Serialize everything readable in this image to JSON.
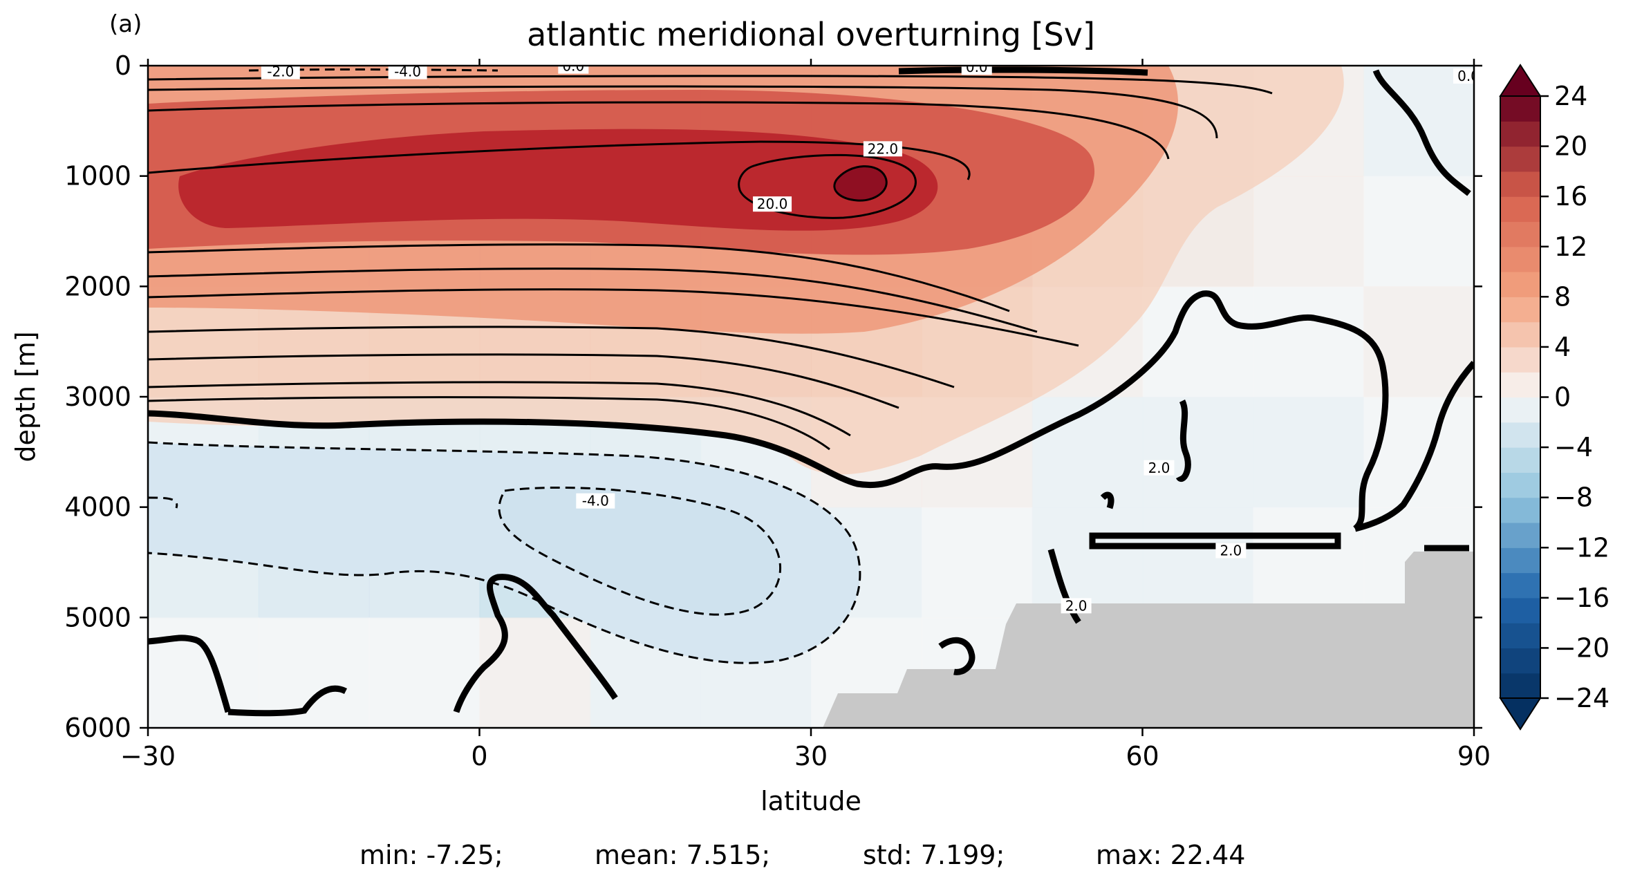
{
  "panel_label": "(a)",
  "stats_line": {
    "min": "min: -7.25;",
    "mean": "mean: 7.515;",
    "std": "std: 7.199;",
    "max": "max: 22.44"
  },
  "colors": {
    "land": "#c8c8c8",
    "background": "#ffffff",
    "contour_line": "#000000"
  },
  "chart_data": {
    "type": "heatmap",
    "title": "atlantic meridional overturning [Sv]",
    "xlabel": "latitude",
    "ylabel": "depth [m]",
    "xlim": [
      -30,
      90
    ],
    "ylim": [
      6000,
      0
    ],
    "xticks": [
      -30,
      0,
      30,
      60,
      90
    ],
    "xtick_labels": [
      "−30",
      "0",
      "30",
      "60",
      "90"
    ],
    "yticks": [
      0,
      1000,
      2000,
      3000,
      4000,
      5000,
      6000
    ],
    "ytick_labels": [
      "0",
      "1000",
      "2000",
      "3000",
      "4000",
      "5000",
      "6000"
    ],
    "colorbar": {
      "cmap": "RdBu_r",
      "vmin": -24,
      "vmax": 24,
      "levels_step": 2,
      "extend": "both",
      "ticks": [
        24,
        20,
        16,
        12,
        8,
        4,
        0,
        -4,
        -8,
        -12,
        -16,
        -20,
        -24
      ],
      "tick_labels": [
        "24",
        "20",
        "16",
        "12",
        "8",
        "4",
        "0",
        "−4",
        "−8",
        "−12",
        "−16",
        "−20",
        "−24"
      ]
    },
    "contour_labels": [
      {
        "text": "-2.0",
        "lat": -18,
        "depth": 60
      },
      {
        "text": "-4.0",
        "lat": -6.5,
        "depth": 60
      },
      {
        "text": "0.0",
        "lat": 8.5,
        "depth": 10
      },
      {
        "text": "0.0",
        "lat": 45,
        "depth": 20
      },
      {
        "text": "0.0",
        "lat": 89.5,
        "depth": 100
      },
      {
        "text": "22.0",
        "lat": 36.5,
        "depth": 760
      },
      {
        "text": "20.0",
        "lat": 26.5,
        "depth": 1260
      },
      {
        "text": "2.0",
        "lat": 61.5,
        "depth": 3650
      },
      {
        "text": "-4.0",
        "lat": 10.5,
        "depth": 3950
      },
      {
        "text": "2.0",
        "lat": 68,
        "depth": 4400
      },
      {
        "text": "2.0",
        "lat": 54,
        "depth": 4900
      }
    ],
    "cells": {
      "rows": 6,
      "cols": 12,
      "x_centers": [
        -25,
        -15,
        -5,
        5,
        15,
        25,
        35,
        45,
        55,
        65,
        75,
        85
      ],
      "y_centers": [
        500,
        1500,
        2500,
        3500,
        4500,
        5500
      ],
      "values": [
        [
          12,
          16,
          17,
          17,
          18,
          19,
          19,
          14,
          3,
          2,
          1,
          -1
        ],
        [
          16,
          18,
          19,
          19,
          19,
          20,
          19,
          14,
          5,
          2,
          1,
          0
        ],
        [
          6,
          7,
          8,
          9,
          10,
          11,
          10,
          6,
          1,
          0,
          0,
          1
        ],
        [
          -1,
          -2,
          -2,
          -2,
          -2,
          -1,
          1,
          1,
          -1,
          -1,
          -1,
          0
        ],
        [
          -2,
          -3,
          -3,
          -5,
          -5,
          -3,
          -1,
          0,
          -1,
          -1,
          0,
          0
        ],
        [
          0,
          0,
          0,
          1,
          -1,
          -1,
          0,
          0,
          0,
          0,
          0,
          0
        ]
      ]
    }
  }
}
